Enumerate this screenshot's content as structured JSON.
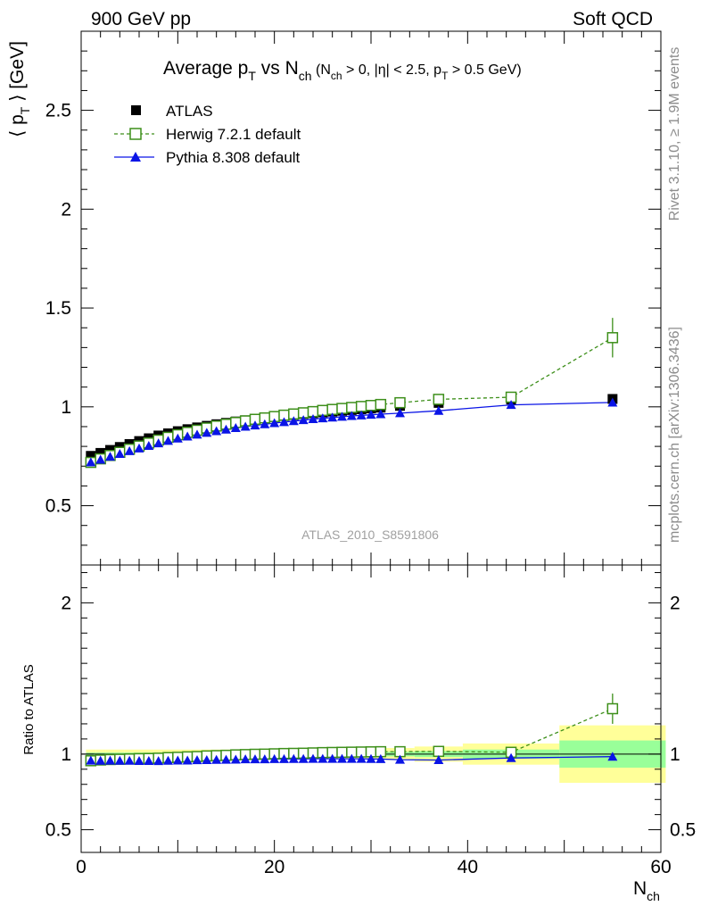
{
  "header": {
    "left": "900 GeV pp",
    "right": "Soft QCD"
  },
  "side_labels": {
    "rivet": "Rivet 3.1.10, ≥ 1.9M events",
    "mcplots": "mcplots.cern.ch [arXiv:1306.3436]"
  },
  "watermark": "ATLAS_2010_S8591806",
  "colors": {
    "atlas": "#000000",
    "herwig": "#3d8f1a",
    "pythia": "#0a14e6",
    "band_inner": "#99ff99",
    "band_outer": "#ffff99"
  },
  "chart_data": [
    {
      "type": "scatter",
      "title": "Average p_T vs N_ch (N_ch > 0, |η| < 2.5, p_T > 0.5 GeV)",
      "title_parts": {
        "t1": "Average p",
        "t1sub": "T",
        "t2": " vs N",
        "t2sub": "ch",
        "t3": " (N",
        "t3sub": "ch",
        "t4": " > 0, |η| < 2.5, p",
        "t4sub": "T",
        "t5": " > 0.5 GeV)"
      },
      "ylabel_parts": {
        "a": "⟨ p",
        "sub": "T",
        "b": " ⟩ [GeV]"
      },
      "xlim": [
        0,
        60
      ],
      "ylim": [
        0.2,
        2.9
      ],
      "x_ticks": [
        0,
        20,
        40,
        60
      ],
      "y_ticks": [
        0.5,
        1,
        1.5,
        2,
        2.5
      ],
      "y_tick_labels": [
        "0.5",
        "1",
        "1.5",
        "2",
        "2.5"
      ],
      "legend_position": "top-left",
      "series": [
        {
          "name": "ATLAS",
          "marker": "filled-square",
          "x": [
            1,
            2,
            3,
            4,
            5,
            6,
            7,
            8,
            9,
            10,
            11,
            12,
            13,
            14,
            15,
            16,
            17,
            18,
            19,
            20,
            21,
            22,
            23,
            24,
            25,
            26,
            27,
            28,
            29,
            30,
            31,
            33,
            37,
            44.5,
            55
          ],
          "y": [
            0.752,
            0.767,
            0.782,
            0.797,
            0.812,
            0.827,
            0.841,
            0.855,
            0.866,
            0.877,
            0.887,
            0.896,
            0.904,
            0.912,
            0.919,
            0.926,
            0.932,
            0.938,
            0.944,
            0.949,
            0.954,
            0.959,
            0.964,
            0.968,
            0.972,
            0.976,
            0.98,
            0.984,
            0.988,
            0.992,
            0.996,
            1.005,
            1.02,
            1.037,
            1.04
          ]
        },
        {
          "name": "Herwig 7.2.1 default",
          "marker": "open-square",
          "x": [
            1,
            2,
            3,
            4,
            5,
            6,
            7,
            8,
            9,
            10,
            11,
            12,
            13,
            14,
            15,
            16,
            17,
            18,
            19,
            20,
            21,
            22,
            23,
            24,
            25,
            26,
            27,
            28,
            29,
            30,
            31,
            33,
            37,
            44.5,
            55
          ],
          "y": [
            0.719,
            0.737,
            0.754,
            0.77,
            0.786,
            0.802,
            0.817,
            0.832,
            0.846,
            0.859,
            0.871,
            0.882,
            0.893,
            0.903,
            0.912,
            0.921,
            0.929,
            0.937,
            0.944,
            0.951,
            0.958,
            0.964,
            0.97,
            0.976,
            0.982,
            0.987,
            0.992,
            0.997,
            1.002,
            1.007,
            1.012,
            1.021,
            1.038,
            1.049,
            1.35
          ],
          "yerr": [
            0.003,
            0.003,
            0.003,
            0.003,
            0.003,
            0.003,
            0.003,
            0.003,
            0.003,
            0.003,
            0.003,
            0.003,
            0.003,
            0.003,
            0.003,
            0.003,
            0.003,
            0.003,
            0.003,
            0.003,
            0.003,
            0.003,
            0.003,
            0.003,
            0.003,
            0.003,
            0.003,
            0.003,
            0.003,
            0.004,
            0.004,
            0.005,
            0.008,
            0.015,
            0.1
          ]
        },
        {
          "name": "Pythia 8.308 default",
          "marker": "filled-triangle",
          "x": [
            1,
            2,
            3,
            4,
            5,
            6,
            7,
            8,
            9,
            10,
            11,
            12,
            13,
            14,
            15,
            16,
            17,
            18,
            19,
            20,
            21,
            22,
            23,
            24,
            25,
            26,
            27,
            28,
            29,
            30,
            31,
            33,
            37,
            44.5,
            55
          ],
          "y": [
            0.72,
            0.733,
            0.748,
            0.762,
            0.776,
            0.79,
            0.803,
            0.816,
            0.828,
            0.84,
            0.85,
            0.86,
            0.869,
            0.877,
            0.885,
            0.893,
            0.9,
            0.906,
            0.912,
            0.918,
            0.923,
            0.928,
            0.933,
            0.938,
            0.942,
            0.946,
            0.95,
            0.954,
            0.957,
            0.96,
            0.963,
            0.968,
            0.98,
            1.01,
            1.022
          ]
        }
      ]
    },
    {
      "type": "scatter",
      "ylabel": "Ratio to ATLAS",
      "xlabel_parts": {
        "a": "N",
        "sub": "ch"
      },
      "xlim": [
        0,
        60
      ],
      "ylim": [
        0.35,
        2.25
      ],
      "x_ticks": [
        0,
        20,
        40,
        60
      ],
      "x_tick_labels": [
        "0",
        "20",
        "40",
        "60"
      ],
      "y_ticks": [
        0.5,
        1,
        2
      ],
      "y_tick_labels": [
        "0.5",
        "1",
        "2"
      ],
      "reference_line": 1,
      "bands": {
        "x_edges": [
          0.5,
          1.5,
          2.5,
          3.5,
          4.5,
          5.5,
          6.5,
          7.5,
          8.5,
          9.5,
          10.5,
          11.5,
          12.5,
          13.5,
          14.5,
          15.5,
          16.5,
          17.5,
          18.5,
          19.5,
          20.5,
          21.5,
          22.5,
          23.5,
          24.5,
          25.5,
          26.5,
          27.5,
          28.5,
          29.5,
          30.5,
          31.5,
          34.5,
          39.5,
          49.5,
          60.5
        ],
        "inner": [
          0.01,
          0.01,
          0.01,
          0.01,
          0.01,
          0.01,
          0.01,
          0.01,
          0.01,
          0.01,
          0.01,
          0.01,
          0.01,
          0.01,
          0.01,
          0.01,
          0.01,
          0.01,
          0.01,
          0.01,
          0.01,
          0.01,
          0.01,
          0.01,
          0.01,
          0.01,
          0.01,
          0.012,
          0.012,
          0.012,
          0.012,
          0.015,
          0.02,
          0.03,
          0.09
        ],
        "outer": [
          0.03,
          0.03,
          0.03,
          0.03,
          0.03,
          0.03,
          0.03,
          0.03,
          0.03,
          0.03,
          0.03,
          0.03,
          0.03,
          0.03,
          0.03,
          0.03,
          0.03,
          0.03,
          0.03,
          0.03,
          0.03,
          0.03,
          0.03,
          0.03,
          0.03,
          0.03,
          0.03,
          0.032,
          0.032,
          0.032,
          0.032,
          0.04,
          0.05,
          0.07,
          0.19
        ]
      },
      "series": [
        {
          "name": "Herwig 7.2.1 default",
          "x": [
            1,
            2,
            3,
            4,
            5,
            6,
            7,
            8,
            9,
            10,
            11,
            12,
            13,
            14,
            15,
            16,
            17,
            18,
            19,
            20,
            21,
            22,
            23,
            24,
            25,
            26,
            27,
            28,
            29,
            30,
            31,
            33,
            37,
            44.5,
            55
          ],
          "y": [
            0.956,
            0.961,
            0.964,
            0.966,
            0.968,
            0.97,
            0.971,
            0.973,
            0.977,
            0.979,
            0.982,
            0.984,
            0.988,
            0.99,
            0.992,
            0.995,
            0.997,
            0.999,
            1.0,
            1.002,
            1.004,
            1.005,
            1.006,
            1.008,
            1.01,
            1.011,
            1.012,
            1.013,
            1.014,
            1.015,
            1.016,
            1.016,
            1.018,
            1.012,
            1.3
          ],
          "yerr": [
            0.004,
            0.004,
            0.004,
            0.004,
            0.004,
            0.004,
            0.004,
            0.004,
            0.004,
            0.004,
            0.004,
            0.004,
            0.004,
            0.004,
            0.004,
            0.004,
            0.004,
            0.004,
            0.004,
            0.004,
            0.004,
            0.004,
            0.004,
            0.004,
            0.004,
            0.004,
            0.004,
            0.004,
            0.004,
            0.005,
            0.005,
            0.006,
            0.008,
            0.015,
            0.1
          ]
        },
        {
          "name": "Pythia 8.308 default",
          "x": [
            1,
            2,
            3,
            4,
            5,
            6,
            7,
            8,
            9,
            10,
            11,
            12,
            13,
            14,
            15,
            16,
            17,
            18,
            19,
            20,
            21,
            22,
            23,
            24,
            25,
            26,
            27,
            28,
            29,
            30,
            31,
            33,
            37,
            44.5,
            55
          ],
          "y": [
            0.957,
            0.956,
            0.957,
            0.956,
            0.956,
            0.955,
            0.955,
            0.954,
            0.956,
            0.958,
            0.958,
            0.96,
            0.961,
            0.962,
            0.963,
            0.964,
            0.966,
            0.966,
            0.966,
            0.967,
            0.967,
            0.968,
            0.968,
            0.969,
            0.969,
            0.969,
            0.969,
            0.969,
            0.969,
            0.968,
            0.967,
            0.963,
            0.961,
            0.974,
            0.983
          ]
        }
      ]
    }
  ]
}
